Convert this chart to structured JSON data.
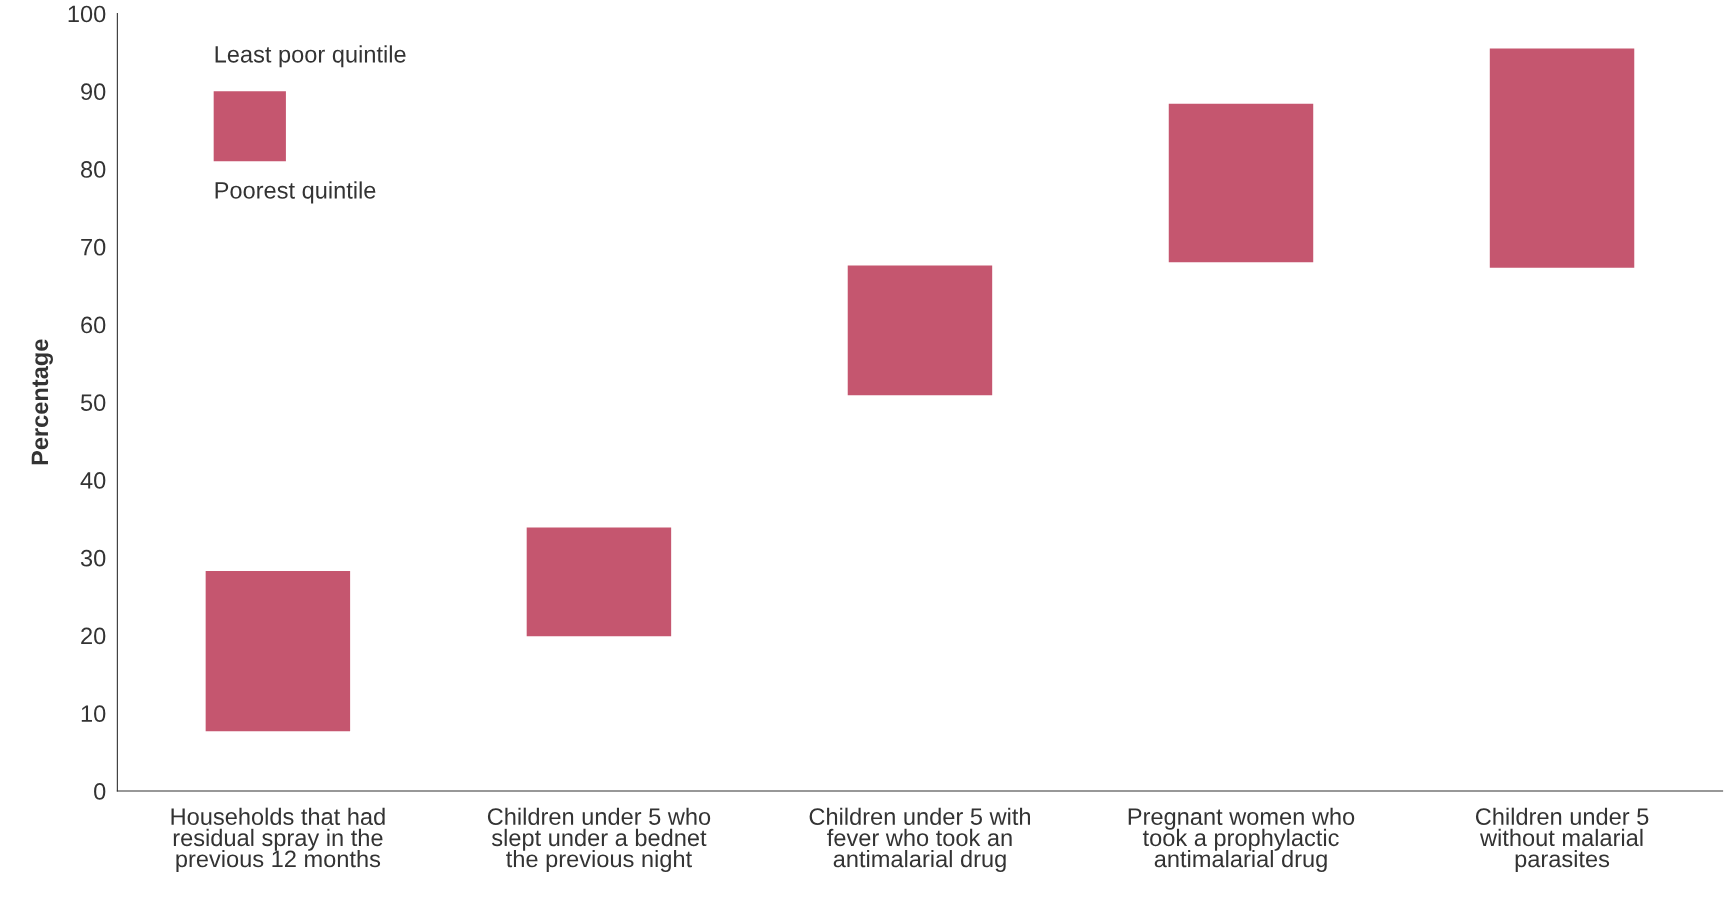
{
  "chart_data": {
    "type": "bar",
    "ylabel": "Percentage",
    "categories": [
      "Households that had\nresidual spray in the\nprevious 12 months",
      "Children under 5 who\nslept under a bednet\nthe previous night",
      "Children under 5 with\nfever who took an\nantimalarial drug",
      "Pregnant women who\ntook a prophylactic\nantimalarial drug",
      "Children under 5\nwithout malarial\nparasites"
    ],
    "base": [
      7.7,
      19.9,
      50.9,
      68.0,
      67.3
    ],
    "values": [
      20.6,
      14.0,
      16.7,
      20.4,
      28.2
    ],
    "color": "#c5566f",
    "ylim": [
      0,
      100
    ],
    "yticks": [
      0,
      10,
      20,
      30,
      40,
      50,
      60,
      70,
      80,
      90,
      100
    ],
    "grid": false,
    "annotations": [
      "Least poor quintile",
      "Poorest quintile"
    ]
  }
}
